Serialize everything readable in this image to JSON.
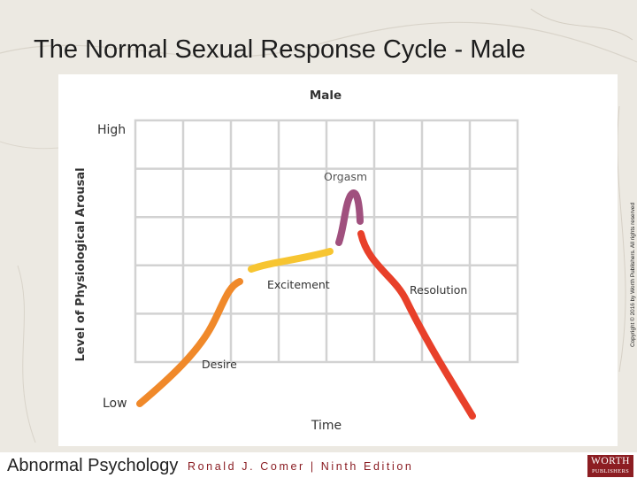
{
  "slide": {
    "title": "The Normal Sexual Response Cycle - Male",
    "copyright": "Copyright © 2016 by Worth Publishers. All rights reserved"
  },
  "chart": {
    "panel_title": "Male",
    "y_axis_label": "Level of Physiological Arousal",
    "y_high_label": "High",
    "y_low_label": "Low",
    "x_axis_label": "Time"
  },
  "phases": {
    "desire": {
      "label": "Desire",
      "color": "#f0892a"
    },
    "excitement": {
      "label": "Excitement",
      "color": "#f7c531"
    },
    "orgasm": {
      "label": "Orgasm",
      "color": "#a0507e"
    },
    "resolution": {
      "label": "Resolution",
      "color": "#e8402a"
    }
  },
  "footer": {
    "book_title": "Abnormal Psychology",
    "author_edition": "Ronald J. Comer | Ninth Edition",
    "publisher_line1": "WORTH",
    "publisher_line2": "PUBLISHERS",
    "publisher_color": "#8c1d22"
  }
}
